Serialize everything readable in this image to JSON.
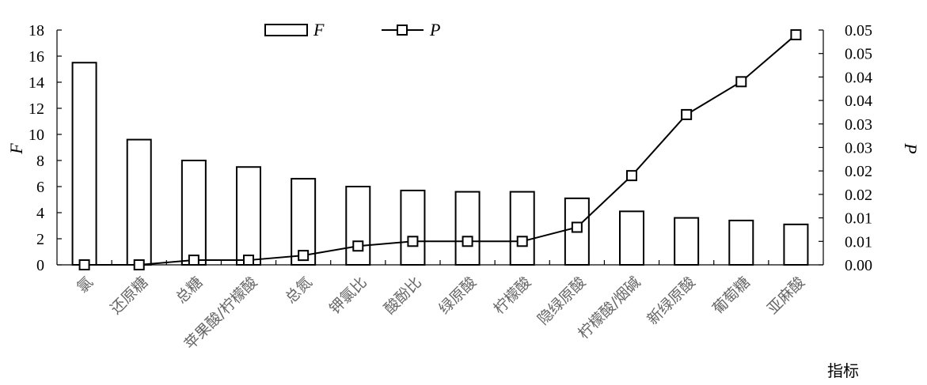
{
  "chart_data": {
    "type": "bar",
    "categories": [
      "氯",
      "还原糖",
      "总糖",
      "苹果酸/柠檬酸",
      "总氮",
      "钾氯比",
      "酸酚比",
      "绿原酸",
      "柠檬酸",
      "隐绿原酸",
      "柠檬酸/烟碱",
      "新绿原酸",
      "葡萄糖",
      "亚麻酸"
    ],
    "series": [
      {
        "name": "F",
        "type": "bar",
        "axis": "left",
        "values": [
          15.5,
          9.6,
          8.0,
          7.5,
          6.6,
          6.0,
          5.7,
          5.6,
          5.6,
          5.1,
          4.1,
          3.6,
          3.4,
          3.1
        ]
      },
      {
        "name": "P",
        "type": "line",
        "marker": "square",
        "axis": "right",
        "values": [
          0.0,
          0.0,
          0.001,
          0.001,
          0.002,
          0.004,
          0.005,
          0.005,
          0.005,
          0.008,
          0.019,
          0.032,
          0.039,
          0.049
        ]
      }
    ],
    "ylabel": "F",
    "y2label": "P",
    "xlabel": "指标",
    "ylim": [
      0,
      18
    ],
    "yticks": [
      "0",
      "2",
      "4",
      "6",
      "8",
      "10",
      "12",
      "14",
      "16",
      "18"
    ],
    "y2lim": [
      0,
      0.05
    ],
    "y2ticks": [
      "0.00",
      "0.01",
      "0.01",
      "0.02",
      "0.02",
      "0.03",
      "0.03",
      "0.04",
      "0.04",
      "0.05",
      "0.05"
    ],
    "grid": false,
    "legend_position": "top-center",
    "colors": {
      "bar_fill": "#ffffff",
      "stroke": "#000000",
      "category_text": "#666666"
    }
  }
}
